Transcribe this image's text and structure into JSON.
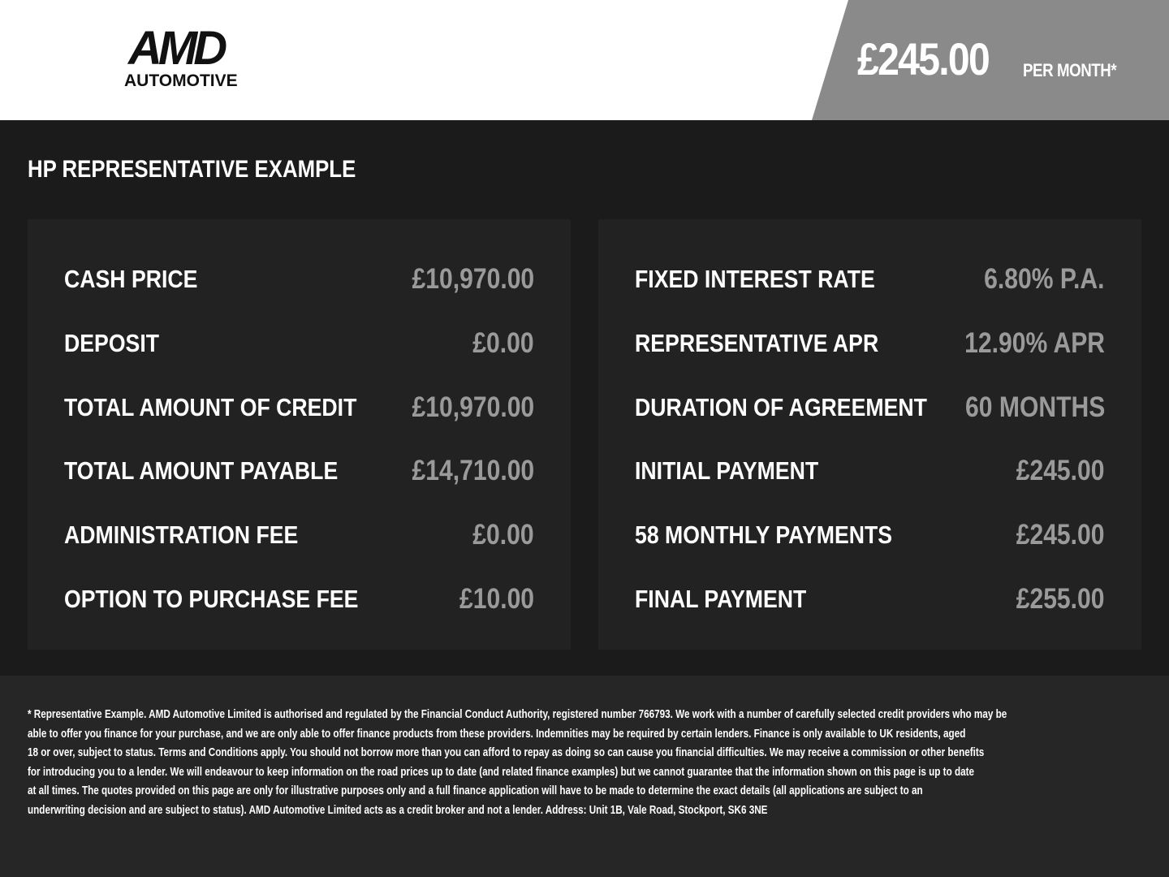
{
  "brand": {
    "logo_main": "AMD",
    "logo_sub": "AUTOMOTIVE"
  },
  "header": {
    "price": "£245.00",
    "per": "PER MONTH*",
    "accent": "#8a8a8a"
  },
  "title": "HP REPRESENTATIVE EXAMPLE",
  "left": [
    {
      "label": "CASH PRICE",
      "value": "£10,970.00"
    },
    {
      "label": "DEPOSIT",
      "value": "£0.00"
    },
    {
      "label": "TOTAL AMOUNT OF CREDIT",
      "value": "£10,970.00"
    },
    {
      "label": "TOTAL AMOUNT PAYABLE",
      "value": "£14,710.00"
    },
    {
      "label": "ADMINISTRATION FEE",
      "value": "£0.00"
    },
    {
      "label": "OPTION TO PURCHASE FEE",
      "value": "£10.00"
    }
  ],
  "right": [
    {
      "label": "FIXED INTEREST RATE",
      "value": "6.80% P.A."
    },
    {
      "label": "REPRESENTATIVE APR",
      "value": "12.90% APR"
    },
    {
      "label": "DURATION OF AGREEMENT",
      "value": "60 MONTHS"
    },
    {
      "label": "INITIAL PAYMENT",
      "value": "£245.00"
    },
    {
      "label": "58 MONTHLY PAYMENTS",
      "value": "£245.00"
    },
    {
      "label": "FINAL PAYMENT",
      "value": "£255.00"
    }
  ],
  "disclaimer": [
    "* Representative Example. AMD Automotive Limited is authorised and regulated by the Financial Conduct Authority, registered number 766793. We work with a number of carefully selected credit providers who may be",
    "able to offer you finance for your purchase, and we are only able to offer finance products from these providers. Indemnities may be required by certain lenders. Finance is only available to UK residents, aged",
    "18 or over, subject to status. Terms and Conditions apply. You should not borrow more than you can afford to repay as doing so can cause you financial difficulties. We may receive a commission or other benefits",
    "for introducing you to a lender. We will endeavour to keep information on the road prices up to date (and related finance examples) but we cannot guarantee that the information shown on this page is up to date",
    "at all times. The quotes provided on this page are only for illustrative purposes only and a full finance application will have to be made to determine the exact details (all applications are subject to an",
    "underwriting decision and are subject to status). AMD Automotive Limited acts as a credit broker and not a lender. Address: Unit 1B, Vale Road, Stockport, SK6 3NE"
  ]
}
